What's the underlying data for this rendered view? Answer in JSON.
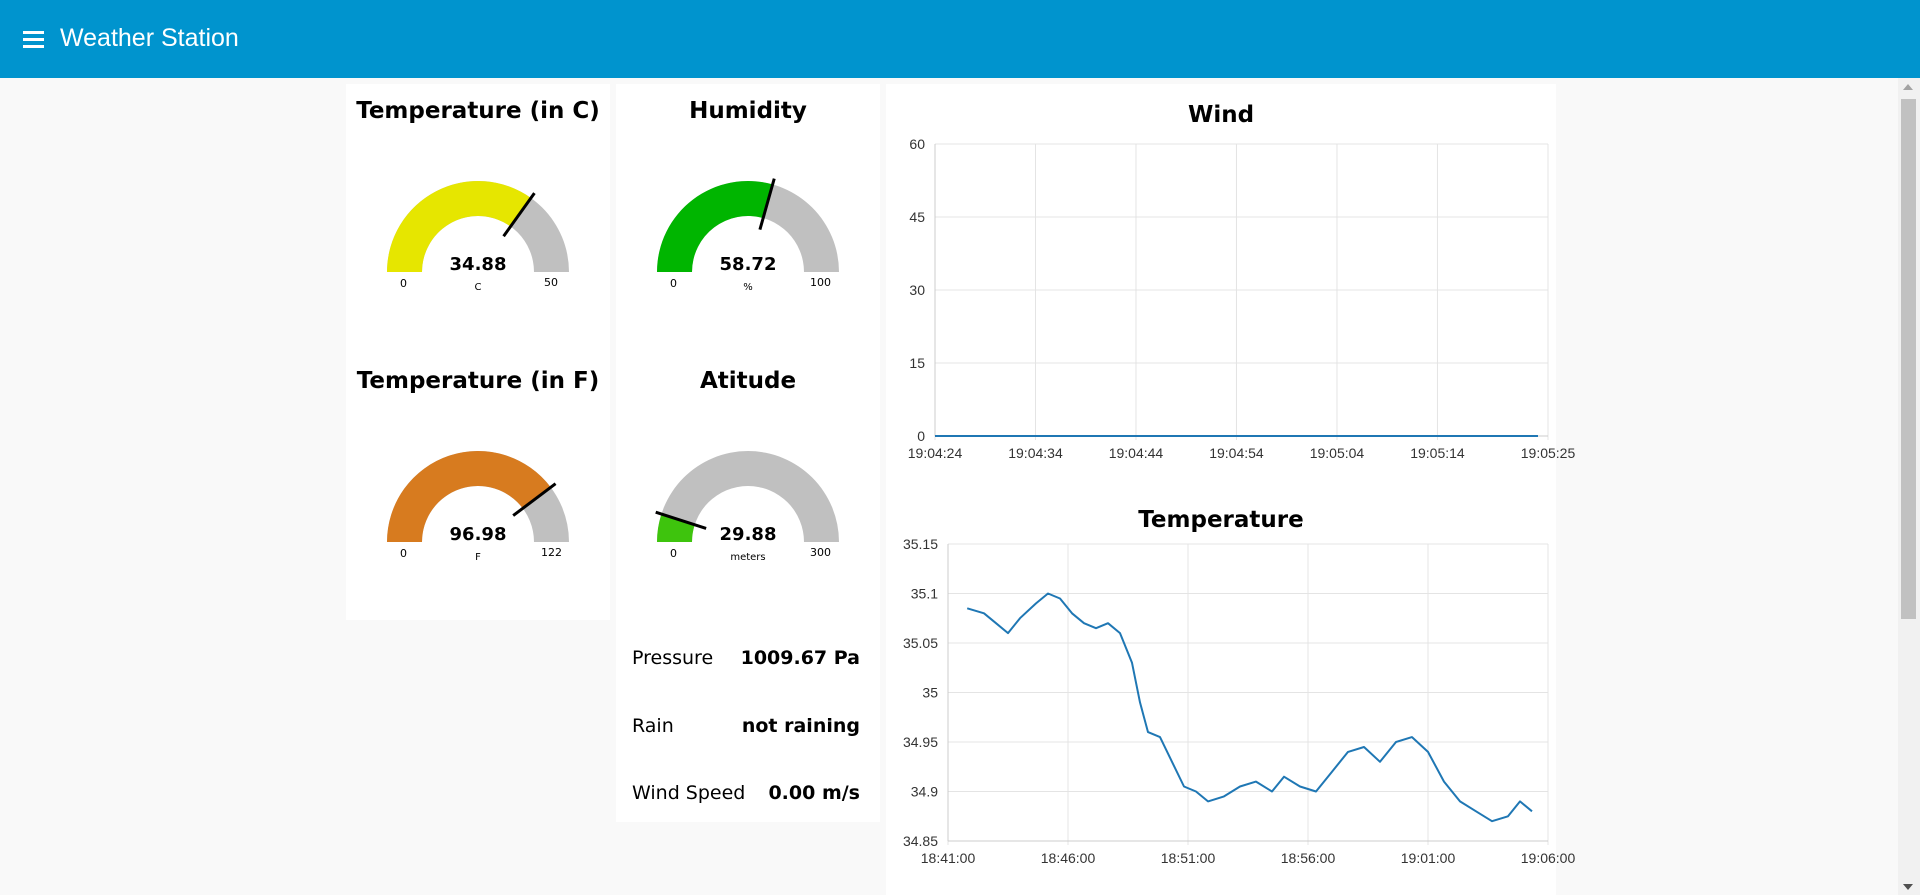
{
  "app": {
    "title": "Weather Station",
    "menu_icon": "hamburger-menu-icon"
  },
  "gauges": {
    "temp_c": {
      "title": "Temperature (in C)",
      "value": "34.88",
      "unit": "C",
      "min": "0",
      "max": "50",
      "level": 0.6976,
      "color": "#e6e600"
    },
    "humidity": {
      "title": "Humidity",
      "value": "58.72",
      "unit": "%",
      "min": "0",
      "max": "100",
      "level": 0.5872,
      "color": "#00b500"
    },
    "temp_f": {
      "title": "Temperature (in F)",
      "value": "96.98",
      "unit": "F",
      "min": "0",
      "max": "122",
      "level": 0.7949,
      "color": "#d77b1f"
    },
    "altitude": {
      "title": "Atitude",
      "value": "29.88",
      "unit": "meters",
      "min": "0",
      "max": "300",
      "level": 0.0996,
      "color": "#3ec40d"
    }
  },
  "readings": {
    "pressure": {
      "label": "Pressure",
      "value": "1009.67 Pa"
    },
    "rain": {
      "label": "Rain",
      "value": "not raining"
    },
    "wind_speed": {
      "label": "Wind Speed",
      "value": "0.00 m/s"
    }
  },
  "colors": {
    "header": "#0094ce",
    "gauge_track": "#c0c0c0",
    "line": "#1f77b4"
  },
  "chart_data": [
    {
      "type": "line",
      "title": "Wind",
      "x_ticks": [
        "19:04:24",
        "19:04:34",
        "19:04:44",
        "19:04:54",
        "19:05:04",
        "19:05:14",
        "19:05:25"
      ],
      "y_ticks": [
        "60",
        "45",
        "30",
        "15",
        "0"
      ],
      "ylim": [
        0,
        60
      ],
      "grid": true,
      "series": [
        {
          "x": [
            "19:04:24",
            "19:05:24"
          ],
          "values": [
            0,
            0
          ]
        }
      ]
    },
    {
      "type": "line",
      "title": "Temperature",
      "x_ticks": [
        "18:41:00",
        "18:46:00",
        "18:51:00",
        "18:56:00",
        "19:01:00",
        "19:06:00"
      ],
      "y_ticks": [
        "35.15",
        "35.1",
        "35.05",
        "35",
        "34.95",
        "34.9",
        "34.85"
      ],
      "ylim": [
        34.85,
        35.15
      ],
      "grid": true,
      "series": [
        {
          "x": [
            "18:41:48",
            "18:42:30",
            "18:43:00",
            "18:43:30",
            "18:44:00",
            "18:44:40",
            "18:45:10",
            "18:45:40",
            "18:46:10",
            "18:46:40",
            "18:47:10",
            "18:47:40",
            "18:48:10",
            "18:48:40",
            "18:49:00",
            "18:49:20",
            "18:49:50",
            "18:50:20",
            "18:50:50",
            "18:51:20",
            "18:51:50",
            "18:52:30",
            "18:53:10",
            "18:53:50",
            "18:54:30",
            "18:55:00",
            "18:55:40",
            "18:56:20",
            "18:57:00",
            "18:57:40",
            "18:58:20",
            "18:59:00",
            "18:59:40",
            "19:00:20",
            "19:01:00",
            "19:01:40",
            "19:02:20",
            "19:03:00",
            "19:03:40",
            "19:04:20",
            "19:04:50",
            "19:05:20"
          ],
          "values": [
            35.085,
            35.08,
            35.07,
            35.06,
            35.075,
            35.09,
            35.1,
            35.095,
            35.08,
            35.07,
            35.065,
            35.07,
            35.06,
            35.03,
            34.99,
            34.96,
            34.955,
            34.93,
            34.905,
            34.9,
            34.89,
            34.895,
            34.905,
            34.91,
            34.9,
            34.915,
            34.905,
            34.9,
            34.92,
            34.94,
            34.945,
            34.93,
            34.95,
            34.955,
            34.94,
            34.91,
            34.89,
            34.88,
            34.87,
            34.875,
            34.89,
            34.88
          ]
        }
      ]
    }
  ]
}
